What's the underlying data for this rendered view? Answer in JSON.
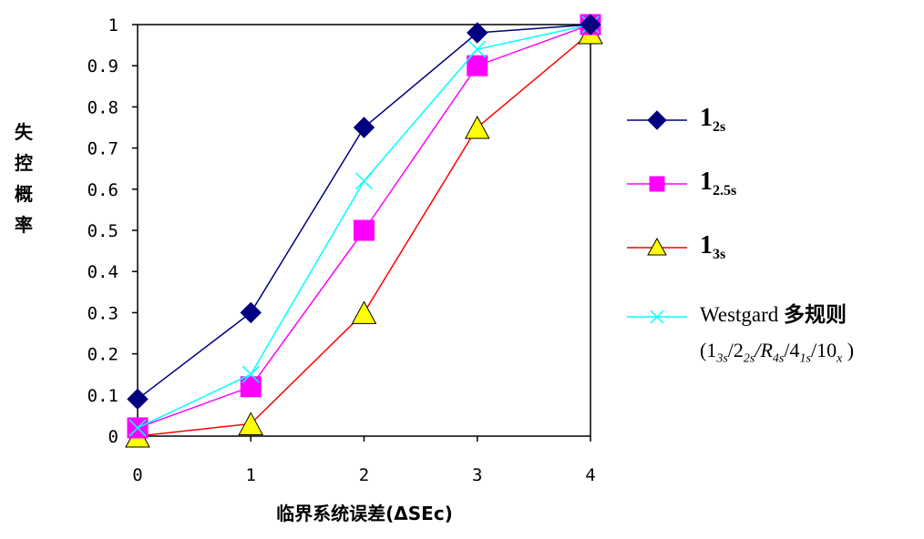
{
  "chart_data": {
    "type": "line",
    "x": [
      0,
      1,
      2,
      3,
      4
    ],
    "xlabel": "临界系统误差(ΔSEc)",
    "ylabel": "失控概率",
    "ylabel_chars": [
      "失",
      "控",
      "概",
      "率"
    ],
    "xlim": [
      0,
      4
    ],
    "ylim": [
      0,
      1
    ],
    "yticks": [
      "0",
      "0.1",
      "0.2",
      "0.3",
      "0.4",
      "0.5",
      "0.6",
      "0.7",
      "0.8",
      "0.9",
      "1"
    ],
    "xticks": [
      "0",
      "1",
      "2",
      "3",
      "4"
    ],
    "grid": false,
    "legend_position": "right",
    "series": [
      {
        "key": "s12",
        "name_main": "1",
        "name_sub": "2s",
        "color": "#000080",
        "marker": "diamond",
        "values": [
          0.09,
          0.3,
          0.75,
          0.98,
          1.0
        ]
      },
      {
        "key": "s125",
        "name_main": "1",
        "name_sub": "2.5s",
        "color": "#ff00ff",
        "marker": "square",
        "values": [
          0.02,
          0.12,
          0.5,
          0.9,
          1.0
        ]
      },
      {
        "key": "s13",
        "name_main": "1",
        "name_sub": "3s",
        "color": "#ff0000",
        "marker": "triangle",
        "marker_fill": "#ffff00",
        "values": [
          0.0,
          0.03,
          0.3,
          0.75,
          0.98
        ]
      },
      {
        "key": "wg",
        "name_text": "Westgard",
        "name_cn": "多规则",
        "color": "#00ffff",
        "marker": "x",
        "values": [
          0.02,
          0.15,
          0.62,
          0.94,
          1.0
        ]
      }
    ],
    "westgard_rule": {
      "open": "(",
      "p1": "1",
      "p1_sub": "3s",
      "p2": "/2",
      "p2_sub": "2s",
      "p3": "/R",
      "p3_sub": "4s",
      "p4": "/4",
      "p4_sub": "1s",
      "p5": "/10",
      "p5_sub": "x",
      "close": " )"
    }
  }
}
